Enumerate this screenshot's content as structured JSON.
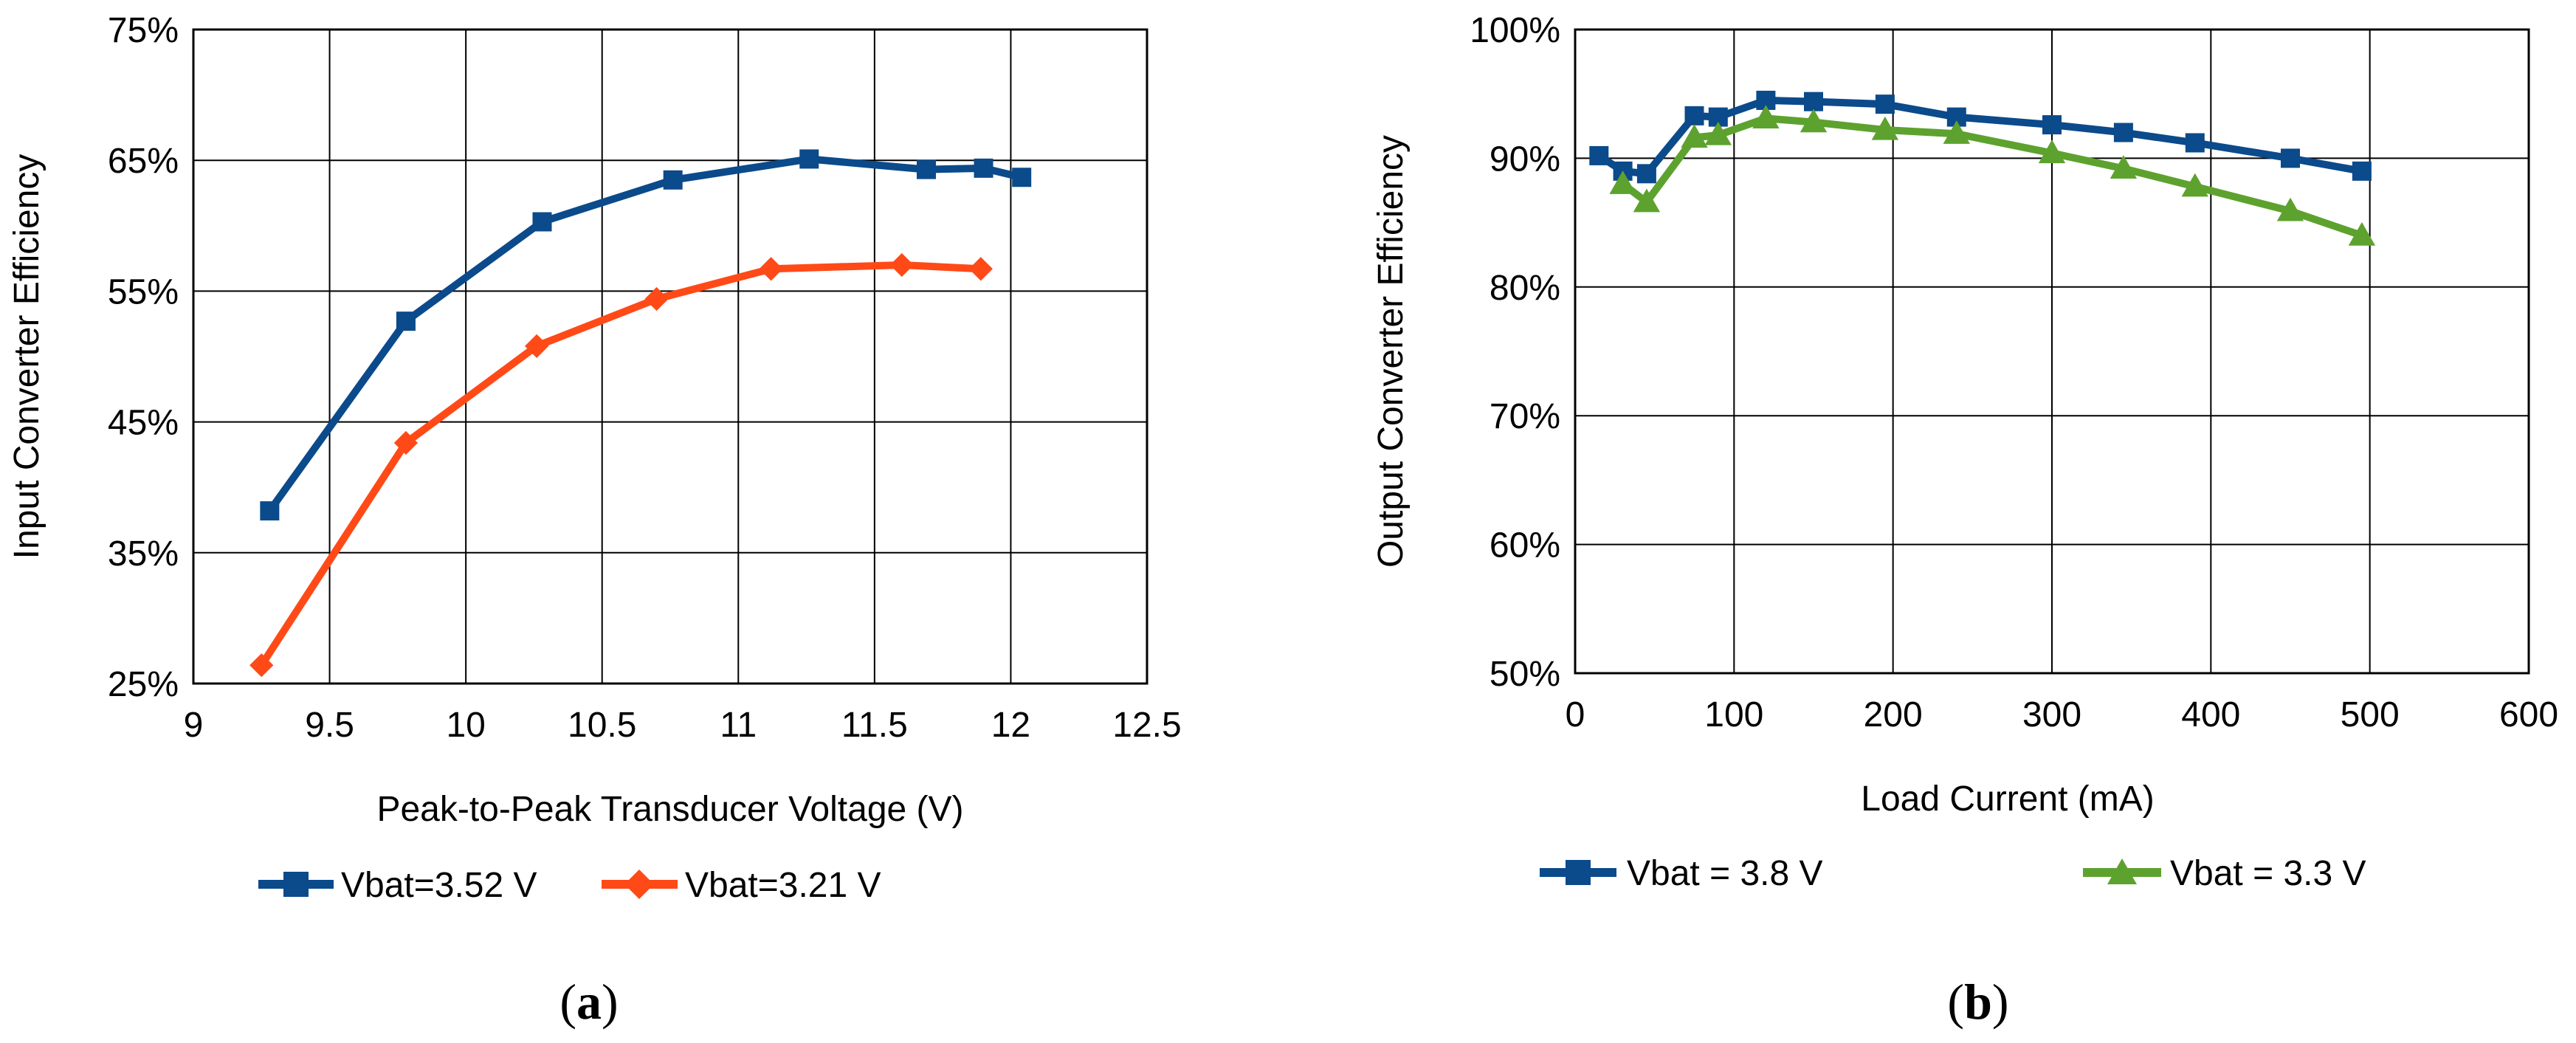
{
  "chart_data": [
    {
      "type": "line",
      "panel_label": "a",
      "xlabel": "Peak-to-Peak Transducer Voltage (V)",
      "ylabel": "Input Converter Efficiency",
      "xlim": [
        9,
        12.5
      ],
      "ylim": [
        25,
        75
      ],
      "x_ticks": [
        "9",
        "9.5",
        "10",
        "10.5",
        "11",
        "11.5",
        "12",
        "12.5"
      ],
      "y_ticks": [
        "25%",
        "35%",
        "45%",
        "55%",
        "65%",
        "75%"
      ],
      "grid": true,
      "legend_position": "bottom",
      "series": [
        {
          "name": "Vbat=3.52 V",
          "color": "#0b4a8b",
          "marker": "square",
          "x": [
            9.28,
            9.78,
            10.28,
            10.76,
            11.26,
            11.69,
            11.9,
            12.04
          ],
          "y": [
            38.2,
            52.7,
            60.3,
            63.5,
            65.1,
            64.3,
            64.4,
            63.7
          ]
        },
        {
          "name": "Vbat=3.21 V",
          "color": "#ff4a17",
          "marker": "diamond",
          "x": [
            9.25,
            9.78,
            10.26,
            10.7,
            11.12,
            11.6,
            11.89
          ],
          "y": [
            26.4,
            43.4,
            50.8,
            54.4,
            56.7,
            57.0,
            56.7
          ]
        }
      ]
    },
    {
      "type": "line",
      "panel_label": "b",
      "xlabel": "Load Current (mA)",
      "ylabel": "Output Converter Efficiency",
      "xlim": [
        0,
        600
      ],
      "ylim": [
        50,
        100
      ],
      "x_ticks": [
        "0",
        "100",
        "200",
        "300",
        "400",
        "500",
        "600"
      ],
      "y_ticks": [
        "50%",
        "60%",
        "70%",
        "80%",
        "90%",
        "100%"
      ],
      "grid": true,
      "legend_position": "bottom",
      "series": [
        {
          "name": "Vbat = 3.8 V",
          "color": "#0b4a8b",
          "marker": "square",
          "x": [
            15,
            30,
            45,
            75,
            90,
            120,
            150,
            195,
            240,
            300,
            345,
            390,
            450,
            495
          ],
          "y": [
            90.2,
            89.0,
            88.8,
            93.3,
            93.2,
            94.5,
            94.4,
            94.2,
            93.2,
            92.6,
            92.0,
            91.2,
            90.0,
            89.0
          ]
        },
        {
          "name": "Vbat = 3.3 V",
          "color": "#5da22e",
          "marker": "triangle",
          "x": [
            30,
            45,
            75,
            90,
            120,
            150,
            195,
            240,
            300,
            345,
            390,
            450,
            495
          ],
          "y": [
            88.0,
            86.6,
            91.6,
            91.8,
            93.1,
            92.8,
            92.2,
            91.9,
            90.4,
            89.2,
            87.8,
            85.9,
            84.0
          ]
        }
      ]
    }
  ]
}
